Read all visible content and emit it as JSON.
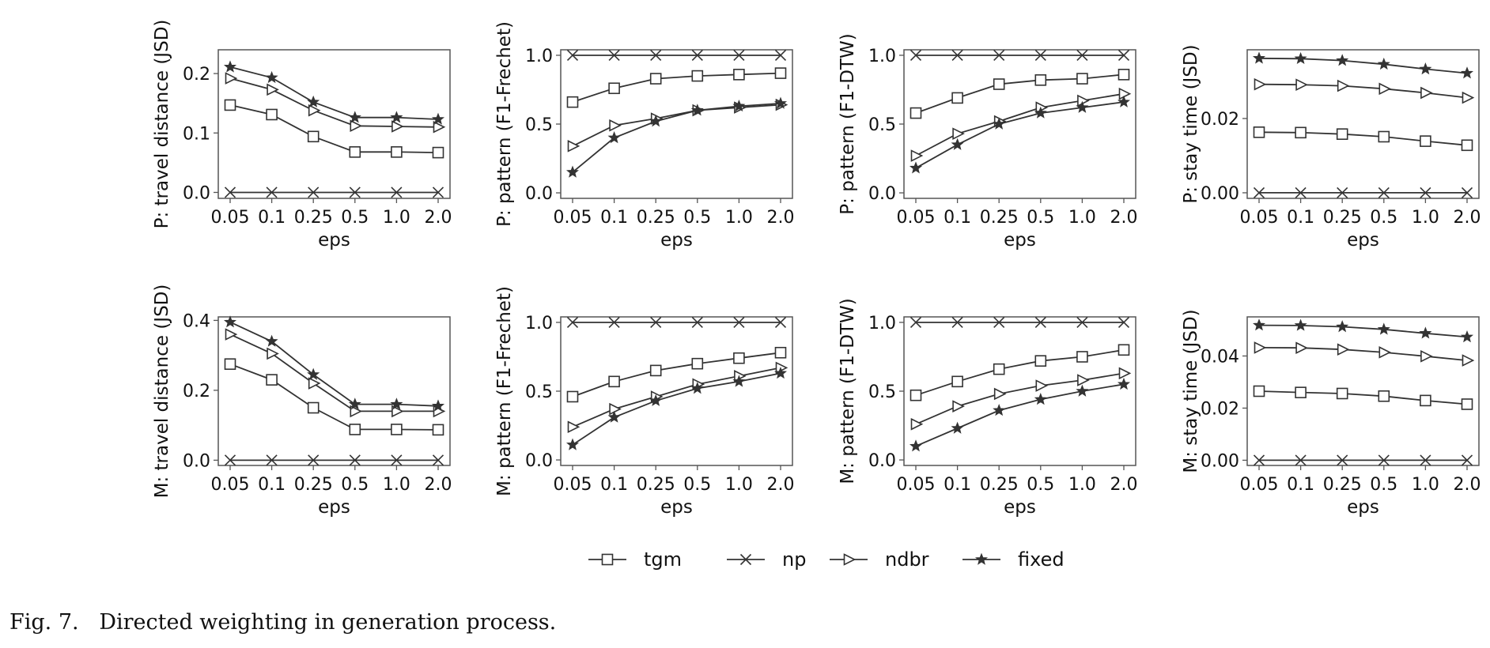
{
  "chart_data": [
    {
      "type": "line",
      "ylabel": "P: travel distance (JSD)",
      "xlabel": "eps",
      "categories": [
        "0.05",
        "0.1",
        "0.25",
        "0.5",
        "1.0",
        "2.0"
      ],
      "ylim": [
        -0.01,
        0.24
      ],
      "yticks": [
        0.0,
        0.1,
        0.2
      ],
      "yticklabels": [
        "0.0",
        "0.1",
        "0.2"
      ],
      "series": [
        {
          "name": "tgm",
          "values": [
            0.147,
            0.131,
            0.094,
            0.068,
            0.068,
            0.067
          ]
        },
        {
          "name": "np",
          "values": [
            0.0,
            0.0,
            0.0,
            0.0,
            0.0,
            0.0
          ]
        },
        {
          "name": "ndbr",
          "values": [
            0.192,
            0.173,
            0.138,
            0.112,
            0.111,
            0.11
          ]
        },
        {
          "name": "fixed",
          "values": [
            0.211,
            0.193,
            0.152,
            0.126,
            0.126,
            0.123
          ]
        }
      ]
    },
    {
      "type": "line",
      "ylabel": "P: pattern (F1-Frechet)",
      "xlabel": "eps",
      "categories": [
        "0.05",
        "0.1",
        "0.25",
        "0.5",
        "1.0",
        "2.0"
      ],
      "ylim": [
        -0.04,
        1.04
      ],
      "yticks": [
        0.0,
        0.5,
        1.0
      ],
      "yticklabels": [
        "0.0",
        "0.5",
        "1.0"
      ],
      "series": [
        {
          "name": "tgm",
          "values": [
            0.66,
            0.76,
            0.83,
            0.85,
            0.86,
            0.87
          ]
        },
        {
          "name": "np",
          "values": [
            1.0,
            1.0,
            1.0,
            1.0,
            1.0,
            1.0
          ]
        },
        {
          "name": "ndbr",
          "values": [
            0.34,
            0.49,
            0.54,
            0.6,
            0.62,
            0.64
          ]
        },
        {
          "name": "fixed",
          "values": [
            0.15,
            0.4,
            0.52,
            0.6,
            0.63,
            0.65
          ]
        }
      ]
    },
    {
      "type": "line",
      "ylabel": "P: pattern (F1-DTW)",
      "xlabel": "eps",
      "categories": [
        "0.05",
        "0.1",
        "0.25",
        "0.5",
        "1.0",
        "2.0"
      ],
      "ylim": [
        -0.04,
        1.04
      ],
      "yticks": [
        0.0,
        0.5,
        1.0
      ],
      "yticklabels": [
        "0.0",
        "0.5",
        "1.0"
      ],
      "series": [
        {
          "name": "tgm",
          "values": [
            0.58,
            0.69,
            0.79,
            0.82,
            0.83,
            0.86
          ]
        },
        {
          "name": "np",
          "values": [
            1.0,
            1.0,
            1.0,
            1.0,
            1.0,
            1.0
          ]
        },
        {
          "name": "ndbr",
          "values": [
            0.27,
            0.43,
            0.52,
            0.62,
            0.67,
            0.72
          ]
        },
        {
          "name": "fixed",
          "values": [
            0.18,
            0.35,
            0.5,
            0.58,
            0.62,
            0.66
          ]
        }
      ]
    },
    {
      "type": "line",
      "ylabel": "P: stay time (JSD)",
      "xlabel": "eps",
      "categories": [
        "0.05",
        "0.1",
        "0.25",
        "0.5",
        "1.0",
        "2.0"
      ],
      "ylim": [
        -0.0015,
        0.0385
      ],
      "yticks": [
        0.0,
        0.02
      ],
      "yticklabels": [
        "0.00",
        "0.02"
      ],
      "series": [
        {
          "name": "tgm",
          "values": [
            0.0163,
            0.0162,
            0.0158,
            0.0151,
            0.0139,
            0.0128
          ]
        },
        {
          "name": "np",
          "values": [
            0.0,
            0.0,
            0.0,
            0.0,
            0.0,
            0.0
          ]
        },
        {
          "name": "ndbr",
          "values": [
            0.0292,
            0.0291,
            0.0288,
            0.028,
            0.0269,
            0.0256
          ]
        },
        {
          "name": "fixed",
          "values": [
            0.0362,
            0.0361,
            0.0356,
            0.0346,
            0.0333,
            0.0322
          ]
        }
      ]
    },
    {
      "type": "line",
      "ylabel": "M: travel distance (JSD)",
      "xlabel": "eps",
      "categories": [
        "0.05",
        "0.1",
        "0.25",
        "0.5",
        "1.0",
        "2.0"
      ],
      "ylim": [
        -0.015,
        0.41
      ],
      "yticks": [
        0.0,
        0.2,
        0.4
      ],
      "yticklabels": [
        "0.0",
        "0.2",
        "0.4"
      ],
      "series": [
        {
          "name": "tgm",
          "values": [
            0.275,
            0.23,
            0.15,
            0.088,
            0.088,
            0.087
          ]
        },
        {
          "name": "np",
          "values": [
            0.0,
            0.0,
            0.0,
            0.0,
            0.0,
            0.0
          ]
        },
        {
          "name": "ndbr",
          "values": [
            0.36,
            0.305,
            0.22,
            0.14,
            0.14,
            0.14
          ]
        },
        {
          "name": "fixed",
          "values": [
            0.395,
            0.34,
            0.245,
            0.16,
            0.16,
            0.155
          ]
        }
      ]
    },
    {
      "type": "line",
      "ylabel": "M: pattern (F1-Frechet)",
      "xlabel": "eps",
      "categories": [
        "0.05",
        "0.1",
        "0.25",
        "0.5",
        "1.0",
        "2.0"
      ],
      "ylim": [
        -0.04,
        1.04
      ],
      "yticks": [
        0.0,
        0.5,
        1.0
      ],
      "yticklabels": [
        "0.0",
        "0.5",
        "1.0"
      ],
      "series": [
        {
          "name": "tgm",
          "values": [
            0.46,
            0.57,
            0.65,
            0.7,
            0.74,
            0.78
          ]
        },
        {
          "name": "np",
          "values": [
            1.0,
            1.0,
            1.0,
            1.0,
            1.0,
            1.0
          ]
        },
        {
          "name": "ndbr",
          "values": [
            0.24,
            0.37,
            0.46,
            0.55,
            0.61,
            0.67
          ]
        },
        {
          "name": "fixed",
          "values": [
            0.11,
            0.31,
            0.43,
            0.52,
            0.57,
            0.63
          ]
        }
      ]
    },
    {
      "type": "line",
      "ylabel": "M: pattern (F1-DTW)",
      "xlabel": "eps",
      "categories": [
        "0.05",
        "0.1",
        "0.25",
        "0.5",
        "1.0",
        "2.0"
      ],
      "ylim": [
        -0.04,
        1.04
      ],
      "yticks": [
        0.0,
        0.5,
        1.0
      ],
      "yticklabels": [
        "0.0",
        "0.5",
        "1.0"
      ],
      "series": [
        {
          "name": "tgm",
          "values": [
            0.47,
            0.57,
            0.66,
            0.72,
            0.75,
            0.8
          ]
        },
        {
          "name": "np",
          "values": [
            1.0,
            1.0,
            1.0,
            1.0,
            1.0,
            1.0
          ]
        },
        {
          "name": "ndbr",
          "values": [
            0.26,
            0.39,
            0.48,
            0.54,
            0.58,
            0.63
          ]
        },
        {
          "name": "fixed",
          "values": [
            0.1,
            0.23,
            0.36,
            0.44,
            0.5,
            0.55
          ]
        }
      ]
    },
    {
      "type": "line",
      "ylabel": "M: stay time (JSD)",
      "xlabel": "eps",
      "categories": [
        "0.05",
        "0.1",
        "0.25",
        "0.5",
        "1.0",
        "2.0"
      ],
      "ylim": [
        -0.002,
        0.055
      ],
      "yticks": [
        0.0,
        0.02,
        0.04
      ],
      "yticklabels": [
        "0.00",
        "0.02",
        "0.04"
      ],
      "series": [
        {
          "name": "tgm",
          "values": [
            0.0265,
            0.026,
            0.0256,
            0.0246,
            0.0229,
            0.0215
          ]
        },
        {
          "name": "np",
          "values": [
            0.0,
            0.0,
            0.0,
            0.0,
            0.0,
            0.0
          ]
        },
        {
          "name": "ndbr",
          "values": [
            0.0432,
            0.0431,
            0.0425,
            0.0414,
            0.0399,
            0.0383
          ]
        },
        {
          "name": "fixed",
          "values": [
            0.0518,
            0.0517,
            0.0512,
            0.0502,
            0.0487,
            0.0473
          ]
        }
      ]
    }
  ],
  "legend": [
    {
      "name": "tgm",
      "marker": "square"
    },
    {
      "name": "np",
      "marker": "x"
    },
    {
      "name": "ndbr",
      "marker": "triangle-right"
    },
    {
      "name": "fixed",
      "marker": "star"
    }
  ],
  "caption": "Fig. 7.   Directed weighting in generation process.",
  "colors": {
    "line": "#333333",
    "axis": "#555555",
    "background": "#ffffff"
  }
}
